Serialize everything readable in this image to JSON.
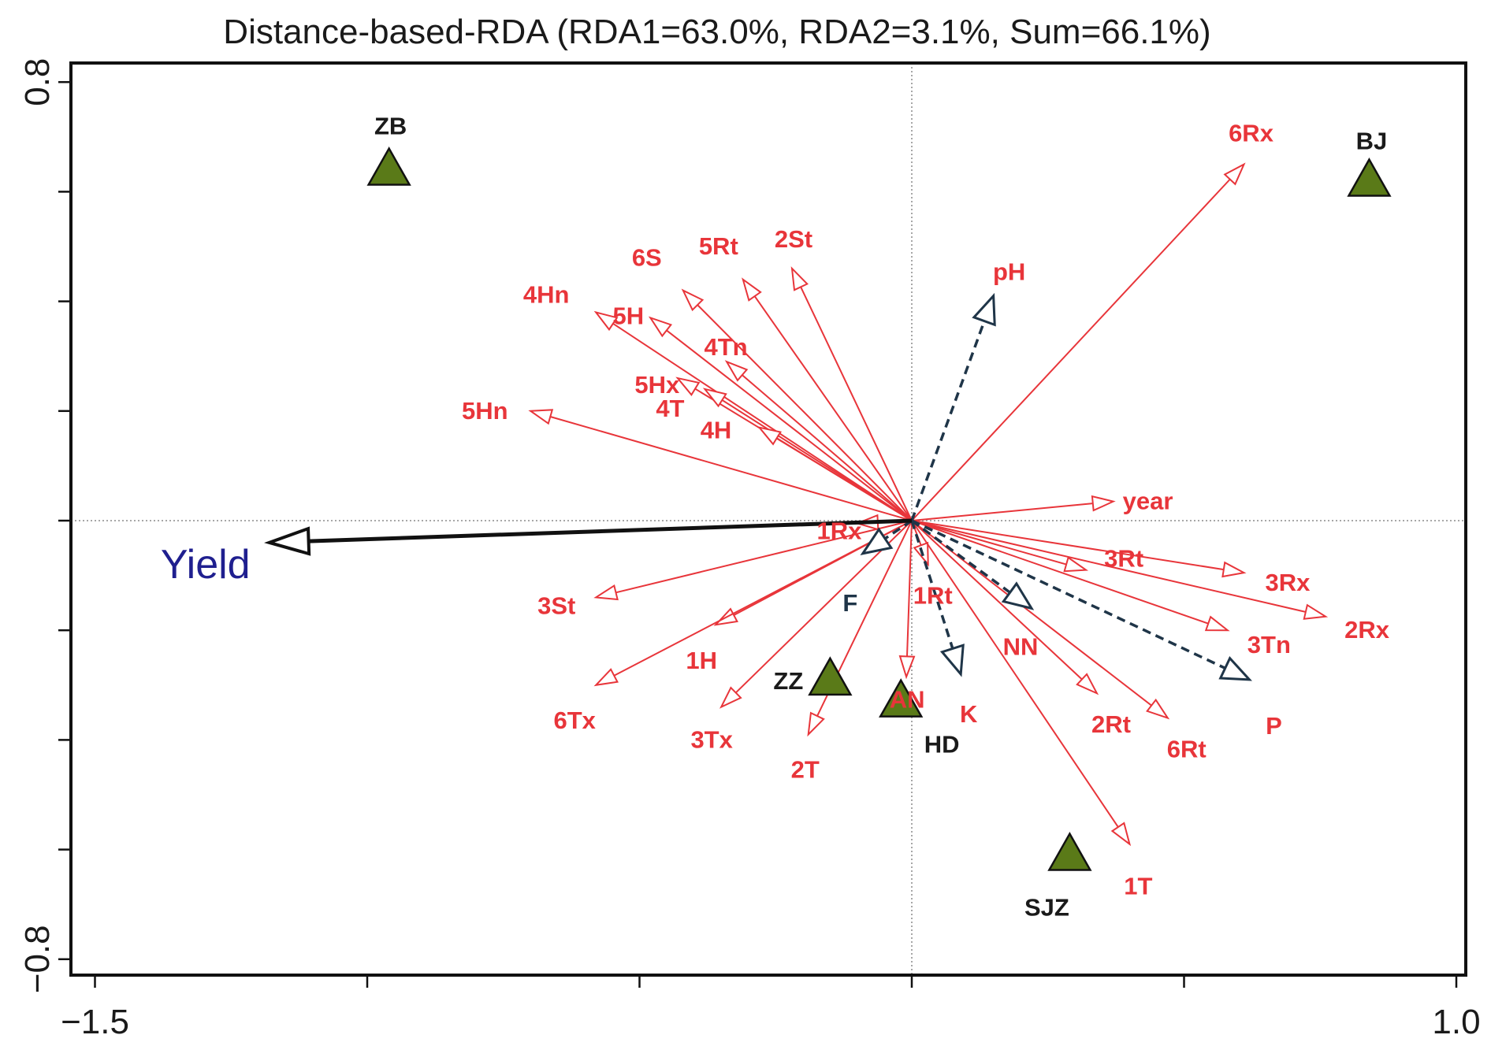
{
  "chart_data": {
    "type": "scatter",
    "subtype": "db-RDA biplot",
    "title": "Distance-based-RDA (RDA1=63.0%, RDA2=3.1%, Sum=66.1%)",
    "xlabel": "",
    "ylabel": "",
    "xlim": [
      -1.5,
      1.0
    ],
    "ylim": [
      -0.8,
      0.8
    ],
    "x_tick_labels": [
      {
        "value": -1.5,
        "label": "−1.5"
      },
      {
        "value": 1.0,
        "label": "1.0"
      }
    ],
    "x_minor_ticks": [
      -1.0,
      -0.5,
      0.0,
      0.5
    ],
    "y_tick_labels": [
      {
        "value": 0.8,
        "label": "0.8"
      },
      {
        "value": -0.8,
        "label": "−0.8"
      }
    ],
    "y_minor_ticks": [
      0.6,
      0.4,
      0.2,
      0.0,
      -0.2,
      -0.4,
      -0.6
    ],
    "reference_lines": {
      "x": 0,
      "y": 0
    },
    "colors": {
      "climate": "#e8353a",
      "soil": "#1f3548",
      "yield_arrow": "#111111",
      "yield_text": "#1f1f8f",
      "site": "#5a7a18",
      "site_stroke": "#111111"
    },
    "response": {
      "name": "Yield",
      "x": -1.18,
      "y": -0.04
    },
    "climate_vectors": [
      {
        "name": "6Rx",
        "x": 0.61,
        "y": 0.65
      },
      {
        "name": "2St",
        "x": -0.22,
        "y": 0.46
      },
      {
        "name": "5Rt",
        "x": -0.31,
        "y": 0.44
      },
      {
        "name": "6S",
        "x": -0.42,
        "y": 0.42
      },
      {
        "name": "5H",
        "x": -0.48,
        "y": 0.37
      },
      {
        "name": "4Hn",
        "x": -0.58,
        "y": 0.38
      },
      {
        "name": "4Tn",
        "x": -0.34,
        "y": 0.29
      },
      {
        "name": "5Hx",
        "x": -0.43,
        "y": 0.26
      },
      {
        "name": "4T",
        "x": -0.38,
        "y": 0.24
      },
      {
        "name": "4H",
        "x": -0.28,
        "y": 0.17
      },
      {
        "name": "5Hn",
        "x": -0.7,
        "y": 0.2
      },
      {
        "name": "year",
        "x": 0.37,
        "y": 0.035
      },
      {
        "name": "1Rx",
        "x": -0.1,
        "y": -0.005
      },
      {
        "name": "3Rt",
        "x": 0.32,
        "y": -0.09
      },
      {
        "name": "3Rx",
        "x": 0.61,
        "y": -0.095
      },
      {
        "name": "2Rx",
        "x": 0.76,
        "y": -0.175
      },
      {
        "name": "3Tn",
        "x": 0.58,
        "y": -0.2
      },
      {
        "name": "1Rt",
        "x": 0.03,
        "y": -0.08
      },
      {
        "name": "3St",
        "x": -0.58,
        "y": -0.14
      },
      {
        "name": "1H",
        "x": -0.36,
        "y": -0.19
      },
      {
        "name": "6Tx",
        "x": -0.58,
        "y": -0.3
      },
      {
        "name": "3Tx",
        "x": -0.35,
        "y": -0.34
      },
      {
        "name": "2T",
        "x": -0.19,
        "y": -0.39
      },
      {
        "name": "AN",
        "x": -0.01,
        "y": -0.285
      },
      {
        "name": "2Rt",
        "x": 0.34,
        "y": -0.315
      },
      {
        "name": "6Rt",
        "x": 0.47,
        "y": -0.36
      },
      {
        "name": "1T",
        "x": 0.4,
        "y": -0.59
      }
    ],
    "soil_vectors": [
      {
        "name": "pH",
        "x": 0.15,
        "y": 0.41
      },
      {
        "name": "F",
        "x": -0.09,
        "y": -0.06
      },
      {
        "name": "NN",
        "x": 0.22,
        "y": -0.16
      },
      {
        "name": "K",
        "x": 0.09,
        "y": -0.28
      },
      {
        "name": "P",
        "x": 0.62,
        "y": -0.29
      }
    ],
    "sites": [
      {
        "name": "ZB",
        "x": -0.96,
        "y": 0.64
      },
      {
        "name": "BJ",
        "x": 0.84,
        "y": 0.62
      },
      {
        "name": "ZZ",
        "x": -0.15,
        "y": -0.29
      },
      {
        "name": "HD",
        "x": -0.02,
        "y": -0.33
      },
      {
        "name": "SJZ",
        "x": 0.29,
        "y": -0.61
      }
    ]
  }
}
